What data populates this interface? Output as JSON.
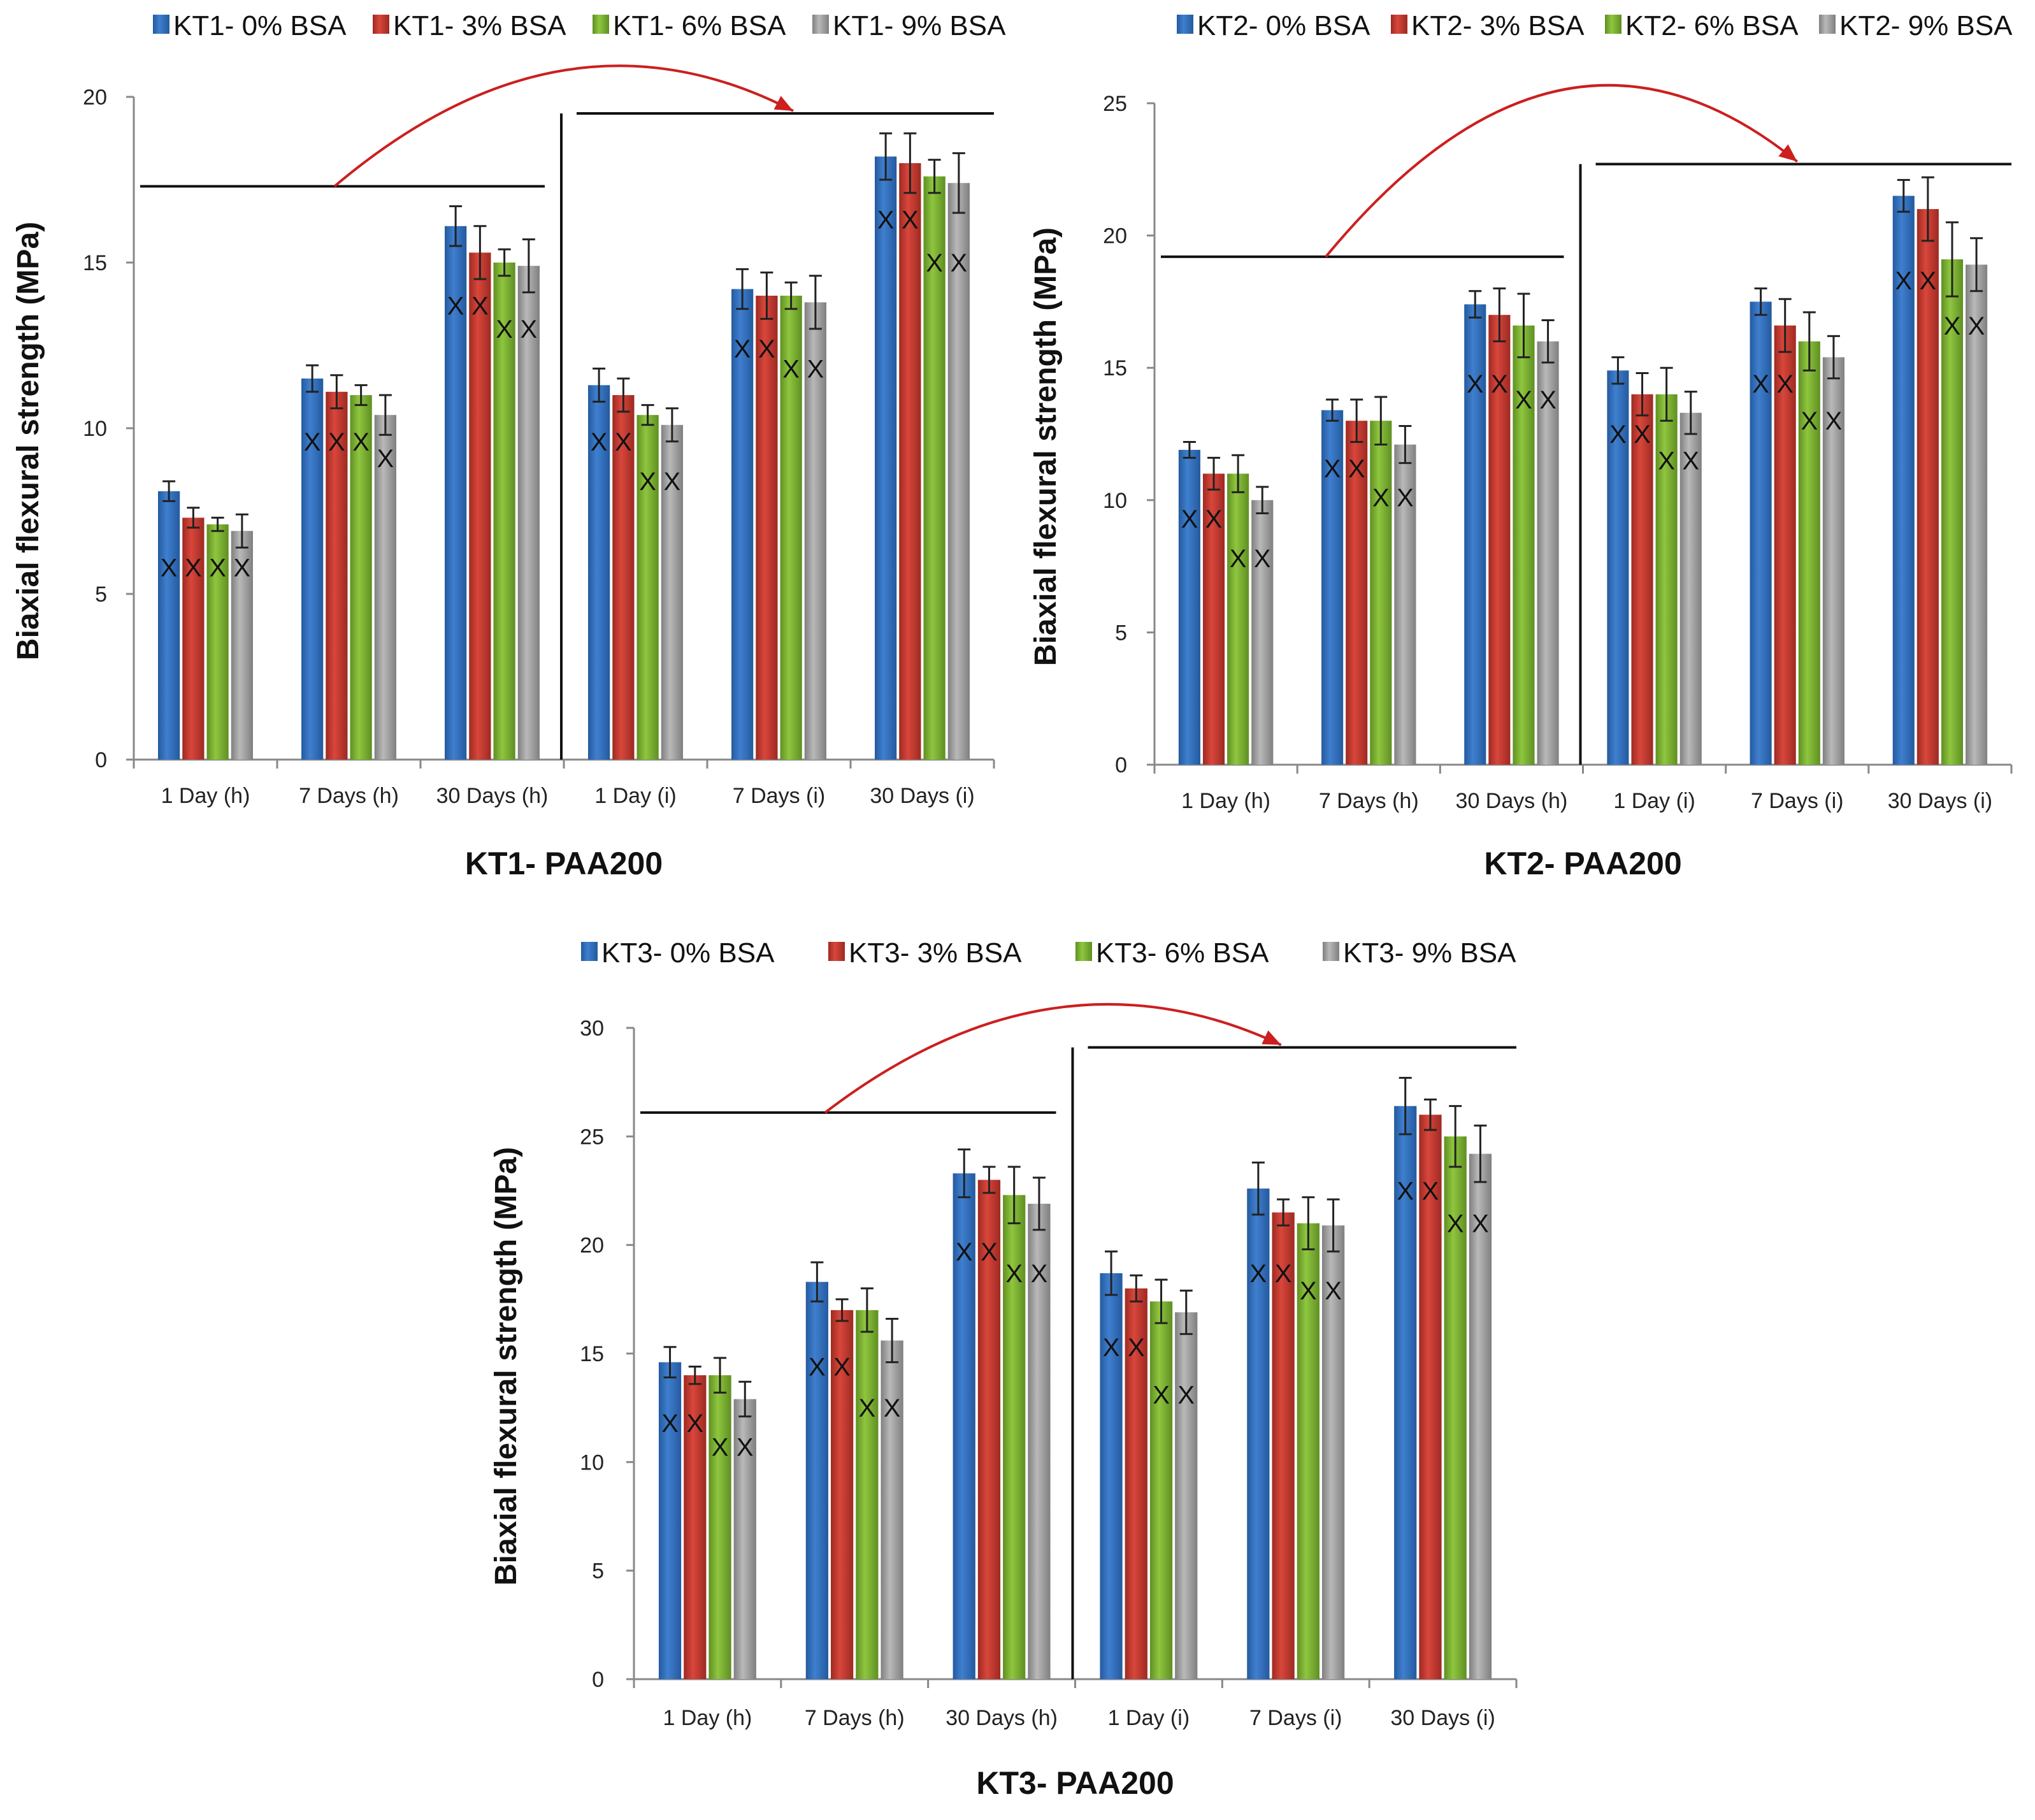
{
  "colors": {
    "series": [
      "#3f7fcf",
      "#d9463b",
      "#8fc63f",
      "#b9b9b9"
    ],
    "series_dark": [
      "#245a9e",
      "#9d2a22",
      "#5f8f22",
      "#7f7f7f"
    ],
    "arrow": "#cc1f1f"
  },
  "chart_data": [
    {
      "type": "bar",
      "title": "KT1- PAA200",
      "ylabel": "Biaxial flexural strength (MPa)",
      "xlabel": "",
      "ylim": [
        0,
        20
      ],
      "yticks": [
        "0",
        "5",
        "10",
        "15",
        "20"
      ],
      "categories": [
        "1 Day (h)",
        "7 Days (h)",
        "30 Days (h)",
        "1 Day (i)",
        "7 Days (i)",
        "30 Days (i)"
      ],
      "series": [
        {
          "name": "KT1- 0% BSA",
          "values": [
            8.1,
            11.5,
            16.1,
            11.3,
            14.2,
            18.2
          ],
          "errors": [
            0.3,
            0.4,
            0.6,
            0.5,
            0.6,
            0.7
          ]
        },
        {
          "name": "KT1- 3% BSA",
          "values": [
            7.3,
            11.1,
            15.3,
            11.0,
            14.0,
            18.0
          ],
          "errors": [
            0.3,
            0.5,
            0.8,
            0.5,
            0.7,
            0.9
          ]
        },
        {
          "name": "KT1- 6% BSA",
          "values": [
            7.1,
            11.0,
            15.0,
            10.4,
            14.0,
            17.6
          ],
          "errors": [
            0.2,
            0.3,
            0.4,
            0.3,
            0.4,
            0.5
          ]
        },
        {
          "name": "KT1- 9% BSA",
          "values": [
            6.9,
            10.4,
            14.9,
            10.1,
            13.8,
            17.4
          ],
          "errors": [
            0.5,
            0.6,
            0.8,
            0.5,
            0.8,
            0.9
          ]
        }
      ],
      "x_marks": [
        {
          "category": 0,
          "series": 0,
          "value": 5.8,
          "text": "X"
        },
        {
          "category": 0,
          "series": 1,
          "value": 5.8,
          "text": "X"
        },
        {
          "category": 0,
          "series": 2,
          "value": 5.8,
          "text": "X"
        },
        {
          "category": 0,
          "series": 3,
          "value": 5.8,
          "text": "X"
        },
        {
          "category": 1,
          "series": 0,
          "value": 9.6,
          "text": "X"
        },
        {
          "category": 1,
          "series": 1,
          "value": 9.6,
          "text": "X"
        },
        {
          "category": 1,
          "series": 2,
          "value": 9.6,
          "text": "X"
        },
        {
          "category": 1,
          "series": 3,
          "value": 9.1,
          "text": "X"
        },
        {
          "category": 2,
          "series": 0,
          "value": 13.7,
          "text": "X"
        },
        {
          "category": 2,
          "series": 1,
          "value": 13.7,
          "text": "X"
        },
        {
          "category": 2,
          "series": 2,
          "value": 13.0,
          "text": "X"
        },
        {
          "category": 2,
          "series": 3,
          "value": 13.0,
          "text": "X"
        },
        {
          "category": 3,
          "series": 0,
          "value": 9.6,
          "text": "X"
        },
        {
          "category": 3,
          "series": 1,
          "value": 9.6,
          "text": "X"
        },
        {
          "category": 3,
          "series": 2,
          "value": 8.4,
          "text": "X"
        },
        {
          "category": 3,
          "series": 3,
          "value": 8.4,
          "text": "X"
        },
        {
          "category": 4,
          "series": 0,
          "value": 12.4,
          "text": "X"
        },
        {
          "category": 4,
          "series": 1,
          "value": 12.4,
          "text": "X"
        },
        {
          "category": 4,
          "series": 2,
          "value": 11.8,
          "text": "X"
        },
        {
          "category": 4,
          "series": 3,
          "value": 11.8,
          "text": "X"
        },
        {
          "category": 5,
          "series": 0,
          "value": 16.3,
          "text": "X"
        },
        {
          "category": 5,
          "series": 1,
          "value": 16.3,
          "text": "X"
        },
        {
          "category": 5,
          "series": 2,
          "value": 15.0,
          "text": "X"
        },
        {
          "category": 5,
          "series": 3,
          "value": 15.0,
          "text": "X"
        }
      ],
      "annotation": {
        "bracket_left_level": 17.3,
        "bracket_right_level": 19.5,
        "arrow_from_category": 1.4,
        "arrow_to_category": 4.6,
        "arrow_peak_level": 20.8
      }
    },
    {
      "type": "bar",
      "title": "KT2- PAA200",
      "ylabel": "Biaxial flexural strength (MPa)",
      "xlabel": "",
      "ylim": [
        0,
        25
      ],
      "yticks": [
        "0",
        "5",
        "10",
        "15",
        "20",
        "25"
      ],
      "categories": [
        "1 Day (h)",
        "7 Days (h)",
        "30 Days (h)",
        "1 Day (i)",
        "7 Days (i)",
        "30 Days (i)"
      ],
      "series": [
        {
          "name": "KT2- 0% BSA",
          "values": [
            11.9,
            13.4,
            17.4,
            14.9,
            17.5,
            21.5
          ],
          "errors": [
            0.3,
            0.4,
            0.5,
            0.5,
            0.5,
            0.6
          ]
        },
        {
          "name": "KT2- 3% BSA",
          "values": [
            11.0,
            13.0,
            17.0,
            14.0,
            16.6,
            21.0
          ],
          "errors": [
            0.6,
            0.8,
            1.0,
            0.8,
            1.0,
            1.2
          ]
        },
        {
          "name": "KT2- 6% BSA",
          "values": [
            11.0,
            13.0,
            16.6,
            14.0,
            16.0,
            19.1
          ],
          "errors": [
            0.7,
            0.9,
            1.2,
            1.0,
            1.1,
            1.4
          ]
        },
        {
          "name": "KT2- 9% BSA",
          "values": [
            10.0,
            12.1,
            16.0,
            13.3,
            15.4,
            18.9
          ],
          "errors": [
            0.5,
            0.7,
            0.8,
            0.8,
            0.8,
            1.0
          ]
        }
      ],
      "x_marks": [
        {
          "category": 0,
          "series": 0,
          "value": 9.3,
          "text": "X"
        },
        {
          "category": 0,
          "series": 1,
          "value": 9.3,
          "text": "X"
        },
        {
          "category": 0,
          "series": 2,
          "value": 7.8,
          "text": "X"
        },
        {
          "category": 0,
          "series": 3,
          "value": 7.8,
          "text": "X"
        },
        {
          "category": 1,
          "series": 0,
          "value": 11.2,
          "text": "X"
        },
        {
          "category": 1,
          "series": 1,
          "value": 11.2,
          "text": "X"
        },
        {
          "category": 1,
          "series": 2,
          "value": 10.1,
          "text": "X"
        },
        {
          "category": 1,
          "series": 3,
          "value": 10.1,
          "text": "X"
        },
        {
          "category": 2,
          "series": 0,
          "value": 14.4,
          "text": "X"
        },
        {
          "category": 2,
          "series": 1,
          "value": 14.4,
          "text": "X"
        },
        {
          "category": 2,
          "series": 2,
          "value": 13.8,
          "text": "X"
        },
        {
          "category": 2,
          "series": 3,
          "value": 13.8,
          "text": "X"
        },
        {
          "category": 3,
          "series": 0,
          "value": 12.5,
          "text": "X"
        },
        {
          "category": 3,
          "series": 1,
          "value": 12.5,
          "text": "X"
        },
        {
          "category": 3,
          "series": 2,
          "value": 11.5,
          "text": "X"
        },
        {
          "category": 3,
          "series": 3,
          "value": 11.5,
          "text": "X"
        },
        {
          "category": 4,
          "series": 0,
          "value": 14.4,
          "text": "X"
        },
        {
          "category": 4,
          "series": 1,
          "value": 14.4,
          "text": "X"
        },
        {
          "category": 4,
          "series": 2,
          "value": 13.0,
          "text": "X"
        },
        {
          "category": 4,
          "series": 3,
          "value": 13.0,
          "text": "X"
        },
        {
          "category": 5,
          "series": 0,
          "value": 18.3,
          "text": "X"
        },
        {
          "category": 5,
          "series": 1,
          "value": 18.3,
          "text": "X"
        },
        {
          "category": 5,
          "series": 2,
          "value": 16.6,
          "text": "X"
        },
        {
          "category": 5,
          "series": 3,
          "value": 16.6,
          "text": "X"
        }
      ],
      "annotation": {
        "bracket_left_level": 19.2,
        "bracket_right_level": 22.7,
        "arrow_from_category": 1.2,
        "arrow_to_category": 4.5,
        "arrow_peak_level": 25.5
      }
    },
    {
      "type": "bar",
      "title": "KT3- PAA200",
      "ylabel": "Biaxial flexural strength (MPa)",
      "xlabel": "",
      "ylim": [
        0,
        30
      ],
      "yticks": [
        "0",
        "5",
        "10",
        "15",
        "20",
        "25",
        "30"
      ],
      "categories": [
        "1 Day (h)",
        "7 Days (h)",
        "30 Days (h)",
        "1 Day (i)",
        "7 Days (i)",
        "30 Days (i)"
      ],
      "series": [
        {
          "name": "KT3- 0% BSA",
          "values": [
            14.6,
            18.3,
            23.3,
            18.7,
            22.6,
            26.4
          ],
          "errors": [
            0.7,
            0.9,
            1.1,
            1.0,
            1.2,
            1.3
          ]
        },
        {
          "name": "KT3- 3% BSA",
          "values": [
            14.0,
            17.0,
            23.0,
            18.0,
            21.5,
            26.0
          ],
          "errors": [
            0.4,
            0.5,
            0.6,
            0.6,
            0.6,
            0.7
          ]
        },
        {
          "name": "KT3- 6% BSA",
          "values": [
            14.0,
            17.0,
            22.3,
            17.4,
            21.0,
            25.0
          ],
          "errors": [
            0.8,
            1.0,
            1.3,
            1.0,
            1.2,
            1.4
          ]
        },
        {
          "name": "KT3- 9% BSA",
          "values": [
            12.9,
            15.6,
            21.9,
            16.9,
            20.9,
            24.2
          ],
          "errors": [
            0.8,
            1.0,
            1.2,
            1.0,
            1.2,
            1.3
          ]
        }
      ],
      "x_marks": [
        {
          "category": 0,
          "series": 0,
          "value": 11.8,
          "text": "X"
        },
        {
          "category": 0,
          "series": 1,
          "value": 11.8,
          "text": "X"
        },
        {
          "category": 0,
          "series": 2,
          "value": 10.7,
          "text": "X"
        },
        {
          "category": 0,
          "series": 3,
          "value": 10.7,
          "text": "X"
        },
        {
          "category": 1,
          "series": 0,
          "value": 14.4,
          "text": "X"
        },
        {
          "category": 1,
          "series": 1,
          "value": 14.4,
          "text": "X"
        },
        {
          "category": 1,
          "series": 2,
          "value": 12.5,
          "text": "X"
        },
        {
          "category": 1,
          "series": 3,
          "value": 12.5,
          "text": "X"
        },
        {
          "category": 2,
          "series": 0,
          "value": 19.7,
          "text": "X"
        },
        {
          "category": 2,
          "series": 1,
          "value": 19.7,
          "text": "X"
        },
        {
          "category": 2,
          "series": 2,
          "value": 18.7,
          "text": "X"
        },
        {
          "category": 2,
          "series": 3,
          "value": 18.7,
          "text": "X"
        },
        {
          "category": 3,
          "series": 0,
          "value": 15.3,
          "text": "X"
        },
        {
          "category": 3,
          "series": 1,
          "value": 15.3,
          "text": "X"
        },
        {
          "category": 3,
          "series": 2,
          "value": 13.1,
          "text": "X"
        },
        {
          "category": 3,
          "series": 3,
          "value": 13.1,
          "text": "X"
        },
        {
          "category": 4,
          "series": 0,
          "value": 18.7,
          "text": "X"
        },
        {
          "category": 4,
          "series": 1,
          "value": 18.7,
          "text": "X"
        },
        {
          "category": 4,
          "series": 2,
          "value": 17.9,
          "text": "X"
        },
        {
          "category": 4,
          "series": 3,
          "value": 17.9,
          "text": "X"
        },
        {
          "category": 5,
          "series": 0,
          "value": 22.5,
          "text": "X"
        },
        {
          "category": 5,
          "series": 1,
          "value": 22.5,
          "text": "X"
        },
        {
          "category": 5,
          "series": 2,
          "value": 21.0,
          "text": "X"
        },
        {
          "category": 5,
          "series": 3,
          "value": 21.0,
          "text": "X"
        }
      ],
      "annotation": {
        "bracket_left_level": 26.1,
        "bracket_right_level": 29.1,
        "arrow_from_category": 1.3,
        "arrow_to_category": 4.4,
        "arrow_peak_level": 30.9
      }
    }
  ]
}
